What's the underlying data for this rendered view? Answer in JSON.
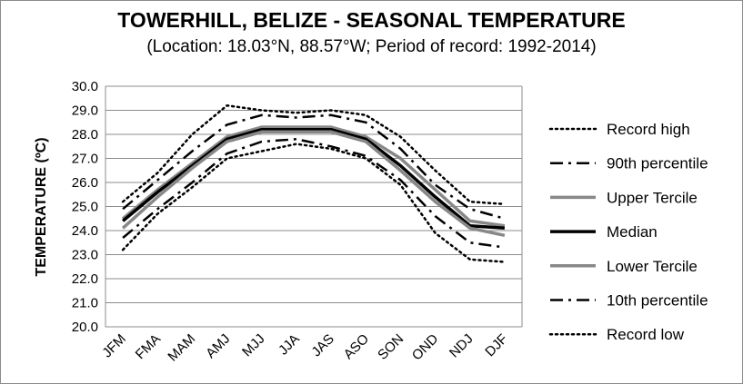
{
  "chart_data": {
    "type": "line",
    "title": "TOWERHILL, BELIZE - SEASONAL TEMPERATURE",
    "subtitle": "(Location: 18.03°N, 88.57°W; Period of record: 1992-2014)",
    "xlabel": "",
    "ylabel": "TEMPERATURE (ºC)",
    "ylim": [
      20.0,
      30.0
    ],
    "yticks": [
      "20.0",
      "21.0",
      "22.0",
      "23.0",
      "24.0",
      "25.0",
      "26.0",
      "27.0",
      "28.0",
      "29.0",
      "30.0"
    ],
    "categories": [
      "JFM",
      "FMA",
      "MAM",
      "AMJ",
      "MJJ",
      "JJA",
      "JAS",
      "ASO",
      "SON",
      "OND",
      "NDJ",
      "DJF"
    ],
    "grid": "horizontal",
    "legend_position": "right",
    "series": [
      {
        "name": "Record high",
        "color": "#000000",
        "style": "dotted-thin",
        "values": [
          25.2,
          26.4,
          28.0,
          29.2,
          29.0,
          28.9,
          29.0,
          28.8,
          27.9,
          26.5,
          25.2,
          25.1
        ]
      },
      {
        "name": "90th percentile",
        "color": "#000000",
        "style": "dashdot",
        "values": [
          24.9,
          26.1,
          27.3,
          28.4,
          28.8,
          28.7,
          28.8,
          28.5,
          27.4,
          25.9,
          24.9,
          24.5
        ]
      },
      {
        "name": "Upper Tercile",
        "color": "#888888",
        "style": "solid",
        "values": [
          24.5,
          25.7,
          26.8,
          27.9,
          28.3,
          28.3,
          28.3,
          27.9,
          27.0,
          25.7,
          24.4,
          24.2
        ]
      },
      {
        "name": "Median",
        "color": "#000000",
        "style": "solid-thick",
        "values": [
          24.4,
          25.6,
          26.7,
          27.8,
          28.2,
          28.2,
          28.2,
          27.8,
          26.7,
          25.4,
          24.2,
          24.1
        ]
      },
      {
        "name": "Lower Tercile",
        "color": "#888888",
        "style": "solid",
        "values": [
          24.1,
          25.4,
          26.6,
          27.7,
          28.1,
          28.1,
          28.1,
          27.7,
          26.5,
          25.2,
          24.1,
          23.8
        ]
      },
      {
        "name": "10th percentile",
        "color": "#000000",
        "style": "dashdot",
        "values": [
          23.7,
          24.9,
          26.0,
          27.2,
          27.7,
          27.8,
          27.5,
          27.1,
          26.1,
          24.6,
          23.5,
          23.3
        ]
      },
      {
        "name": "Record low",
        "color": "#000000",
        "style": "dotted-thin",
        "values": [
          23.2,
          24.7,
          25.8,
          27.0,
          27.3,
          27.6,
          27.4,
          27.0,
          25.9,
          23.9,
          22.8,
          22.7
        ]
      }
    ]
  }
}
